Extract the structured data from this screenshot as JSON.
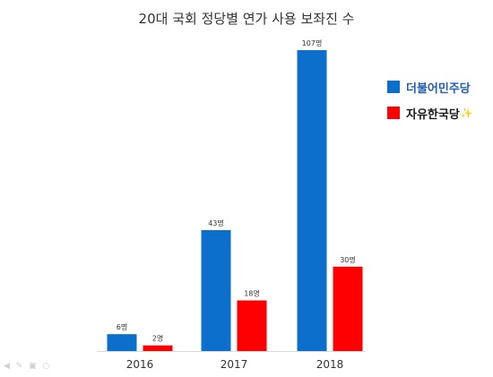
{
  "chart_data": {
    "type": "bar",
    "title": "20대 국회 정당별 연가 사용 보좌진 수",
    "categories": [
      "2016",
      "2017",
      "2018"
    ],
    "series": [
      {
        "name": "더불어민주당",
        "color": "#0d6fcc",
        "values": [
          6,
          43,
          107
        ],
        "labels": [
          "6명",
          "43명",
          "107명"
        ]
      },
      {
        "name": "자유한국당",
        "color": "#ff0000",
        "values": [
          2,
          18,
          30
        ],
        "labels": [
          "2명",
          "18명",
          "30명"
        ]
      }
    ],
    "ylim": [
      0,
      107
    ],
    "grid": false,
    "legend_position": "right"
  }
}
